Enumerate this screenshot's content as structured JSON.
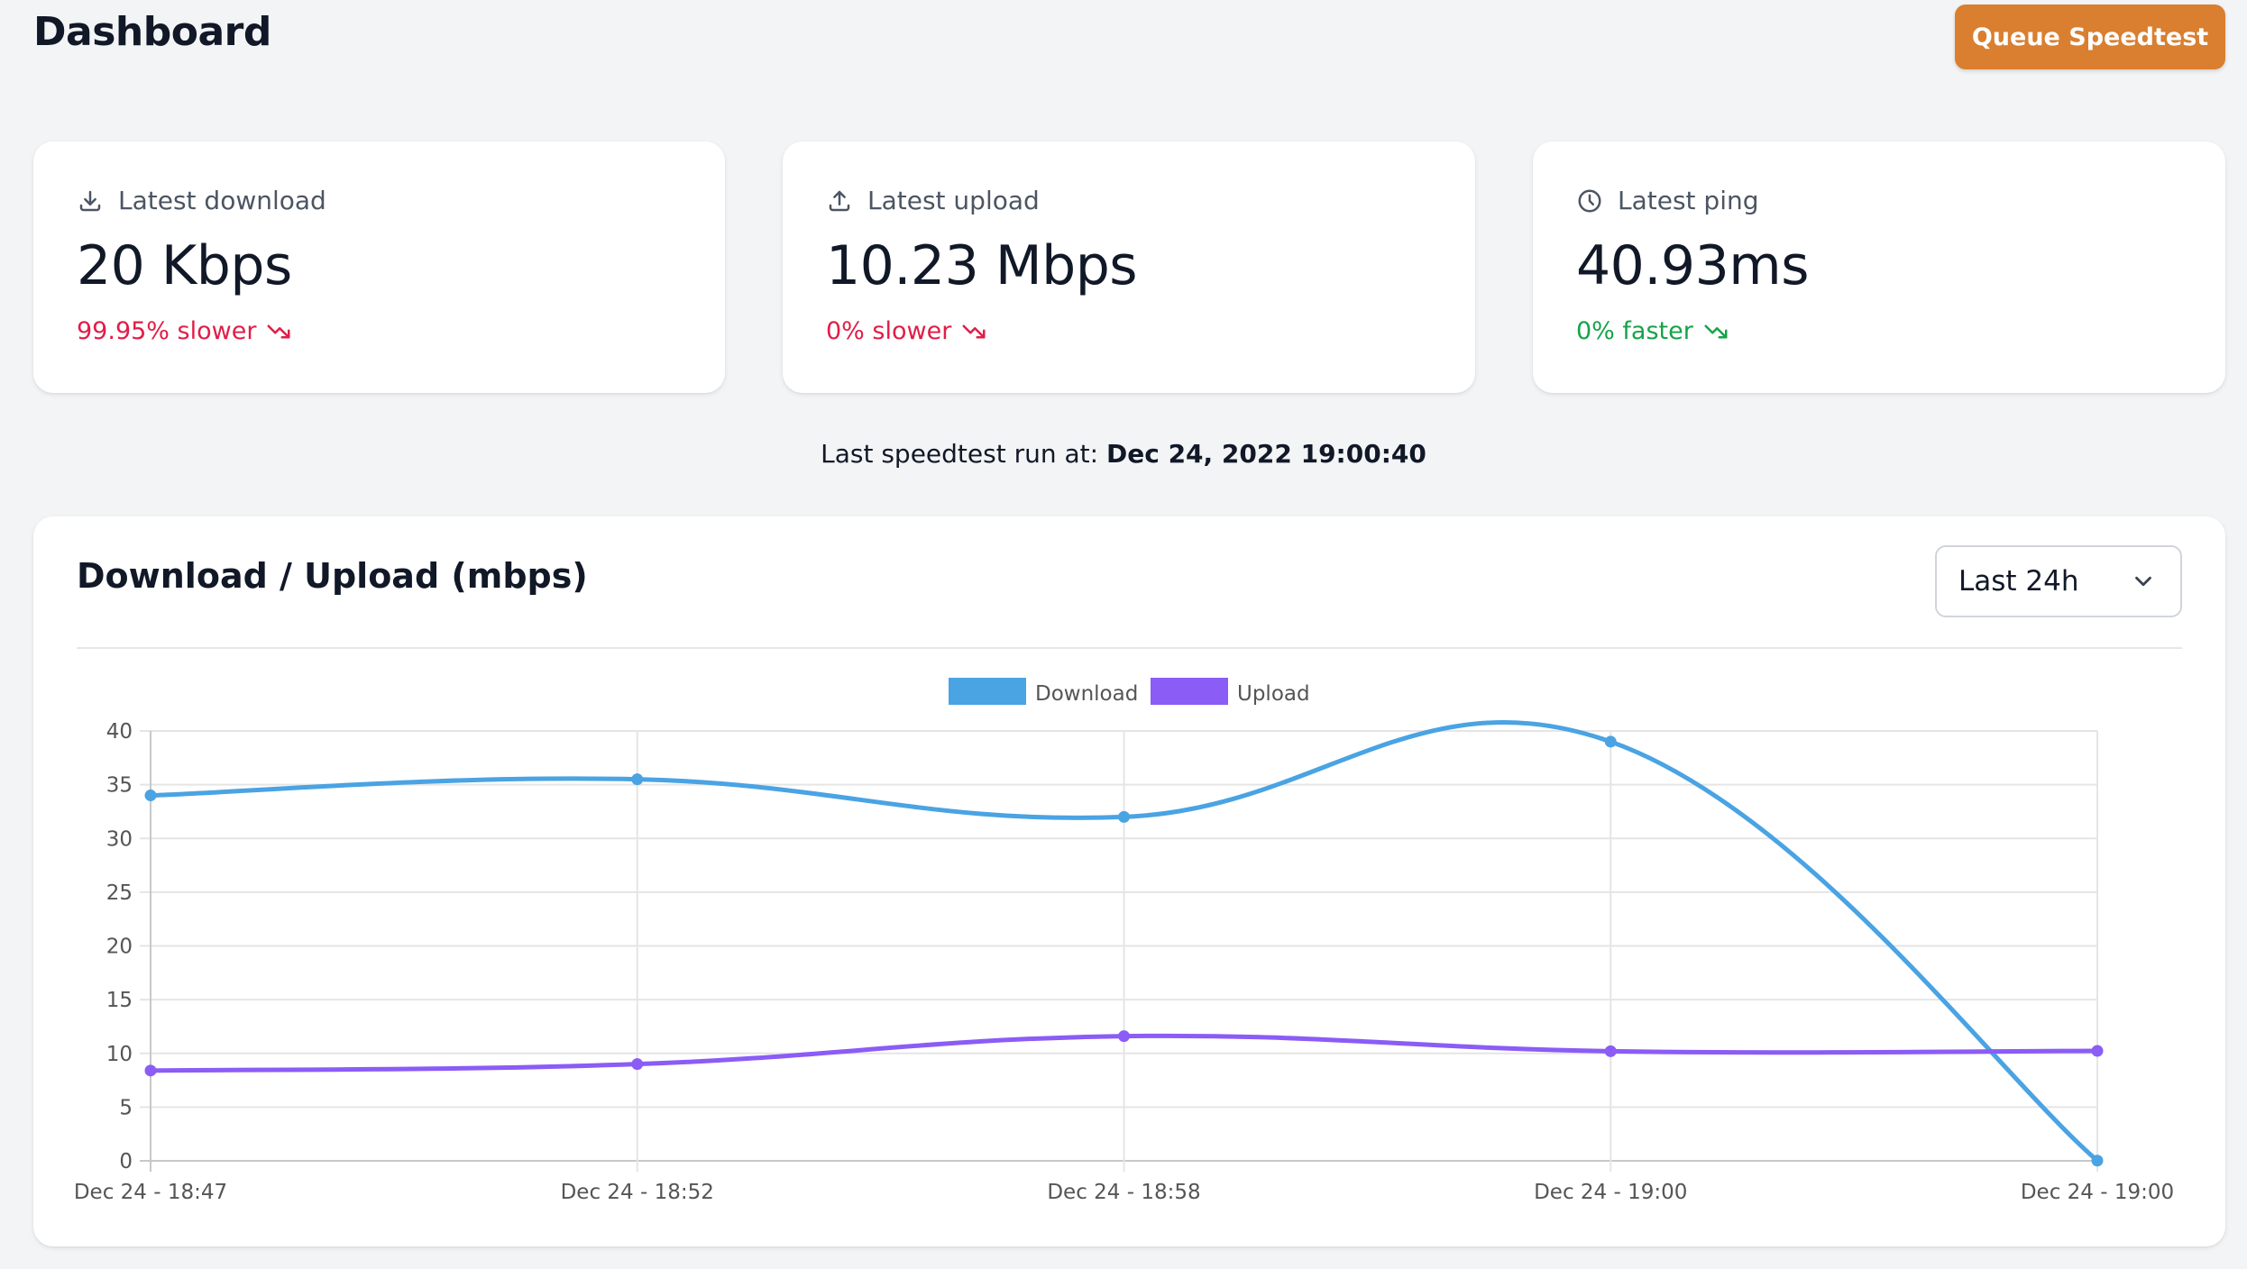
{
  "header": {
    "title": "Dashboard",
    "queue_button_label": "Queue Speedtest"
  },
  "stats": [
    {
      "label": "Latest download",
      "icon": "download-icon",
      "value": "20 Kbps",
      "change": "99.95% slower",
      "change_icon": "trend-down-icon",
      "status": "red"
    },
    {
      "label": "Latest upload",
      "icon": "upload-icon",
      "value": "10.23 Mbps",
      "change": "0% slower",
      "change_icon": "trend-down-icon",
      "status": "red"
    },
    {
      "label": "Latest ping",
      "icon": "clock-icon",
      "value": "40.93ms",
      "change": "0% faster",
      "change_icon": "trend-down-icon",
      "status": "green"
    }
  ],
  "last_run": {
    "label": "Last speedtest run at:",
    "value": "Dec 24, 2022 19:00:40"
  },
  "chart_card": {
    "title": "Download / Upload (mbps)",
    "range_selected": "Last 24h"
  },
  "colors": {
    "accent": "#d97f2f",
    "download": "#4aa3e3",
    "upload": "#8b5cf6",
    "negative": "#e11d48",
    "positive": "#16a34a"
  },
  "chart_data": {
    "type": "line",
    "categories": [
      "Dec 24 - 18:47",
      "Dec 24 - 18:52",
      "Dec 24 - 18:58",
      "Dec 24 - 19:00",
      "Dec 24 - 19:00"
    ],
    "series": [
      {
        "name": "Download",
        "color": "#4aa3e3",
        "values": [
          34,
          35.5,
          32,
          39,
          0.02
        ]
      },
      {
        "name": "Upload",
        "color": "#8b5cf6",
        "values": [
          8.4,
          9,
          11.6,
          10.2,
          10.23
        ]
      }
    ],
    "yticks": [
      0,
      5,
      10,
      15,
      20,
      25,
      30,
      35,
      40
    ],
    "ylim": [
      0,
      40
    ],
    "grid": true,
    "legend": "top-center"
  }
}
